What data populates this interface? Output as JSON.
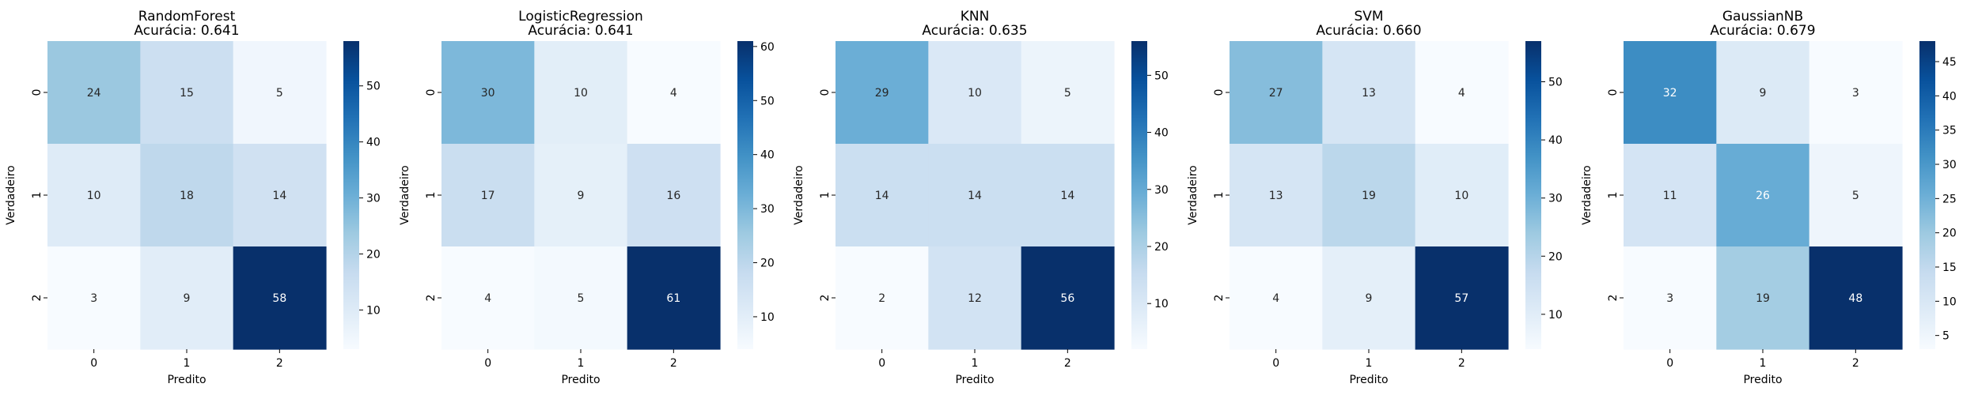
{
  "chart_data": [
    {
      "type": "heatmap",
      "title": "RandomForest",
      "subtitle": "Acurácia: 0.641",
      "xlabel": "Predito",
      "ylabel": "Verdadeiro",
      "x_ticks": [
        "0",
        "1",
        "2"
      ],
      "y_ticks": [
        "0",
        "1",
        "2"
      ],
      "matrix": [
        [
          24,
          15,
          5
        ],
        [
          10,
          18,
          14
        ],
        [
          3,
          9,
          58
        ]
      ],
      "colorbar_ticks": [
        10,
        20,
        30,
        40,
        50
      ],
      "colormap": "Blues"
    },
    {
      "type": "heatmap",
      "title": "LogisticRegression",
      "subtitle": "Acurácia: 0.641",
      "xlabel": "Predito",
      "ylabel": "Verdadeiro",
      "x_ticks": [
        "0",
        "1",
        "2"
      ],
      "y_ticks": [
        "0",
        "1",
        "2"
      ],
      "matrix": [
        [
          30,
          10,
          4
        ],
        [
          17,
          9,
          16
        ],
        [
          4,
          5,
          61
        ]
      ],
      "colorbar_ticks": [
        10,
        20,
        30,
        40,
        50,
        60
      ],
      "colormap": "Blues"
    },
    {
      "type": "heatmap",
      "title": "KNN",
      "subtitle": "Acurácia: 0.635",
      "xlabel": "Predito",
      "ylabel": "Verdadeiro",
      "x_ticks": [
        "0",
        "1",
        "2"
      ],
      "y_ticks": [
        "0",
        "1",
        "2"
      ],
      "matrix": [
        [
          29,
          10,
          5
        ],
        [
          14,
          14,
          14
        ],
        [
          2,
          12,
          56
        ]
      ],
      "colorbar_ticks": [
        10,
        20,
        30,
        40,
        50
      ],
      "colormap": "Blues"
    },
    {
      "type": "heatmap",
      "title": "SVM",
      "subtitle": "Acurácia: 0.660",
      "xlabel": "Predito",
      "ylabel": "Verdadeiro",
      "x_ticks": [
        "0",
        "1",
        "2"
      ],
      "y_ticks": [
        "0",
        "1",
        "2"
      ],
      "matrix": [
        [
          27,
          13,
          4
        ],
        [
          13,
          19,
          10
        ],
        [
          4,
          9,
          57
        ]
      ],
      "colorbar_ticks": [
        10,
        20,
        30,
        40,
        50
      ],
      "colormap": "Blues"
    },
    {
      "type": "heatmap",
      "title": "GaussianNB",
      "subtitle": "Acurácia: 0.679",
      "xlabel": "Predito",
      "ylabel": "Verdadeiro",
      "x_ticks": [
        "0",
        "1",
        "2"
      ],
      "y_ticks": [
        "0",
        "1",
        "2"
      ],
      "matrix": [
        [
          32,
          9,
          3
        ],
        [
          11,
          26,
          5
        ],
        [
          3,
          19,
          48
        ]
      ],
      "colorbar_ticks": [
        5,
        10,
        15,
        20,
        25,
        30,
        35,
        40,
        45
      ],
      "colormap": "Blues"
    }
  ]
}
